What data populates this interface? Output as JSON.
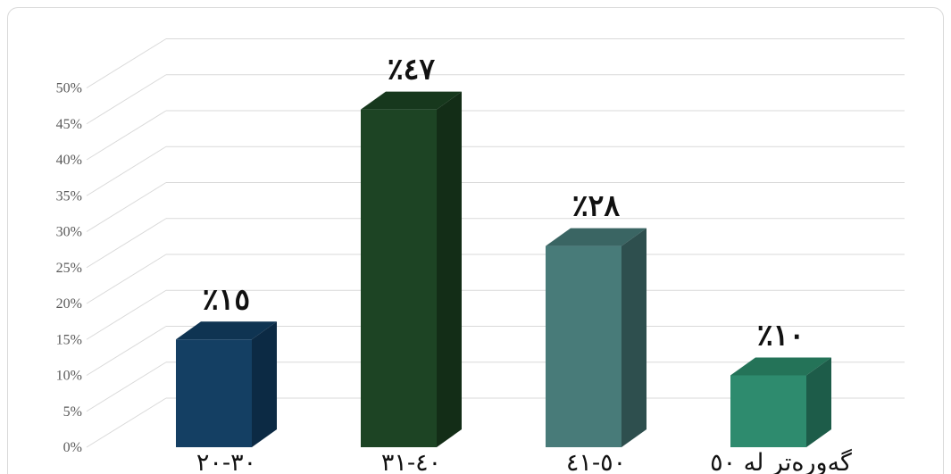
{
  "chart_data": {
    "type": "bar",
    "categories": [
      "٣٠-٢٠",
      "٤٠-٣١",
      "٥٠-٤١",
      "گەورەتر لە ٥٠"
    ],
    "values": [
      15,
      47,
      28,
      10
    ],
    "data_labels": [
      "٪١٥",
      "٪٤٧",
      "٪٢٨",
      "٪١٠"
    ],
    "y_ticks": [
      "0%",
      "5%",
      "10%",
      "15%",
      "20%",
      "25%",
      "30%",
      "35%",
      "40%",
      "45%",
      "50%"
    ],
    "ylim": [
      0,
      50
    ],
    "grid": true,
    "bar_style": "3d",
    "colors": {
      "front": [
        "#143f63",
        "#1d4424",
        "#487b79",
        "#2e8b6e"
      ],
      "side": [
        "#0c2a44",
        "#132d17",
        "#2e4f4e",
        "#1d5c49"
      ],
      "top": [
        "#0f3452",
        "#17381d",
        "#3a6563",
        "#247358"
      ],
      "grid": "#d9d9d9",
      "tick_text": "#595959"
    }
  }
}
